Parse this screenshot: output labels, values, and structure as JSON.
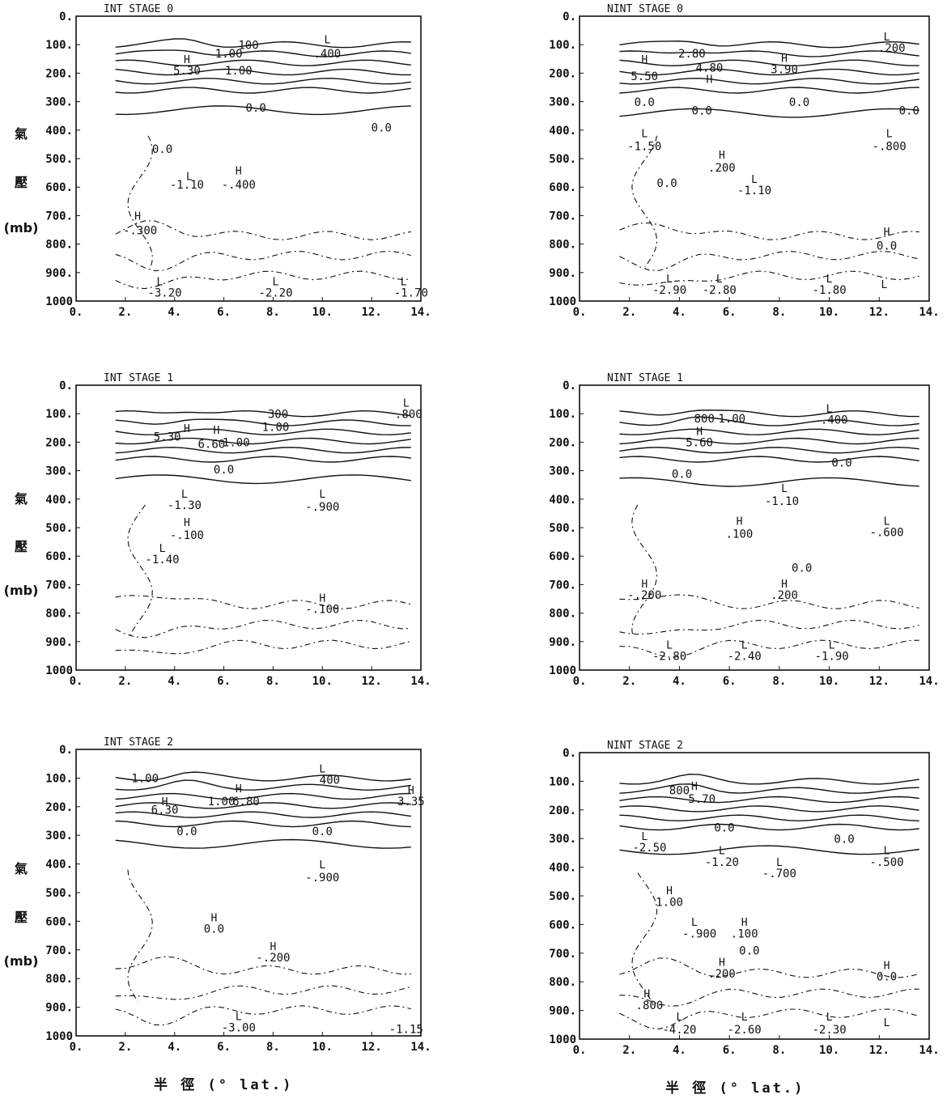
{
  "figure": {
    "x_axis_label": "半 徑 (° lat.)",
    "y_axis_label_chars": [
      "氣",
      "壓",
      "(mb)"
    ]
  },
  "chart_data": [
    {
      "type": "contour",
      "title": "INT STAGE 0",
      "x_ticks": [
        "0.",
        "2.",
        "4.",
        "6.",
        "8.",
        "10.",
        "12.",
        "14."
      ],
      "y_ticks": [
        "0.",
        "100.",
        "200.",
        "300.",
        "400.",
        "500.",
        "600.",
        "700.",
        "800.",
        "900.",
        "1000"
      ],
      "xlim": [
        0,
        14
      ],
      "ylim": [
        0,
        1000
      ],
      "y_inverted": true,
      "labels": [
        {
          "t": "H",
          "x": 4.5,
          "y": 165
        },
        {
          "t": "5.30",
          "x": 4.5,
          "y": 205
        },
        {
          "t": "L",
          "x": 10.2,
          "y": 95
        },
        {
          "t": ".400",
          "x": 10.2,
          "y": 145
        },
        {
          "t": "100",
          "x": 7.0,
          "y": 115
        },
        {
          "t": "1.00",
          "x": 6.2,
          "y": 145
        },
        {
          "t": "1.00",
          "x": 6.6,
          "y": 205
        },
        {
          "t": "0.0",
          "x": 7.3,
          "y": 335
        },
        {
          "t": "0.0",
          "x": 12.4,
          "y": 405
        },
        {
          "t": "0.0",
          "x": 3.5,
          "y": 480
        },
        {
          "t": "L",
          "x": 4.6,
          "y": 575
        },
        {
          "t": "-1.10",
          "x": 4.5,
          "y": 605
        },
        {
          "t": "H",
          "x": 6.6,
          "y": 555
        },
        {
          "t": "-.400",
          "x": 6.6,
          "y": 605
        },
        {
          "t": "H",
          "x": 2.5,
          "y": 715
        },
        {
          "t": "-.300",
          "x": 2.6,
          "y": 765
        },
        {
          "t": "L",
          "x": 3.4,
          "y": 945
        },
        {
          "t": "-3.20",
          "x": 3.6,
          "y": 985
        },
        {
          "t": "L",
          "x": 8.1,
          "y": 945
        },
        {
          "t": "-2.20",
          "x": 8.1,
          "y": 985
        },
        {
          "t": "L",
          "x": 13.3,
          "y": 945
        },
        {
          "t": "-1.70",
          "x": 13.6,
          "y": 985
        }
      ]
    },
    {
      "type": "contour",
      "title": "NINT STAGE 0",
      "x_ticks": [
        "0.",
        "2.",
        "4.",
        "6.",
        "8.",
        "10.",
        "12.",
        "14."
      ],
      "y_ticks": [
        "0.",
        "100.",
        "200.",
        "300.",
        "400.",
        "500.",
        "600.",
        "700.",
        "800.",
        "900.",
        "1000"
      ],
      "xlim": [
        0,
        14
      ],
      "ylim": [
        0,
        1000
      ],
      "y_inverted": true,
      "labels": [
        {
          "t": "2.80",
          "x": 4.5,
          "y": 145
        },
        {
          "t": "H",
          "x": 2.6,
          "y": 165
        },
        {
          "t": "5.50",
          "x": 2.6,
          "y": 225
        },
        {
          "t": "H",
          "x": 5.2,
          "y": 235
        },
        {
          "t": "4.80",
          "x": 5.2,
          "y": 195
        },
        {
          "t": "H",
          "x": 8.2,
          "y": 160
        },
        {
          "t": "3.90",
          "x": 8.2,
          "y": 200
        },
        {
          "t": "L",
          "x": 12.3,
          "y": 85
        },
        {
          "t": ".200",
          "x": 12.5,
          "y": 125
        },
        {
          "t": "0.0",
          "x": 2.6,
          "y": 315
        },
        {
          "t": "0.0",
          "x": 4.9,
          "y": 345
        },
        {
          "t": "0.0",
          "x": 8.8,
          "y": 315
        },
        {
          "t": "0.0",
          "x": 13.2,
          "y": 345
        },
        {
          "t": "L",
          "x": 2.6,
          "y": 425
        },
        {
          "t": "-1.50",
          "x": 2.6,
          "y": 470
        },
        {
          "t": "L",
          "x": 12.4,
          "y": 425
        },
        {
          "t": "-.800",
          "x": 12.4,
          "y": 470
        },
        {
          "t": "H",
          "x": 5.7,
          "y": 500
        },
        {
          "t": ".200",
          "x": 5.7,
          "y": 545
        },
        {
          "t": "L",
          "x": 7.0,
          "y": 585
        },
        {
          "t": "-1.10",
          "x": 7.0,
          "y": 625
        },
        {
          "t": "0.0",
          "x": 3.5,
          "y": 600
        },
        {
          "t": "H",
          "x": 12.3,
          "y": 770
        },
        {
          "t": "0.0",
          "x": 12.3,
          "y": 820
        },
        {
          "t": "L",
          "x": 3.6,
          "y": 935
        },
        {
          "t": "-2.90",
          "x": 3.6,
          "y": 975
        },
        {
          "t": "L",
          "x": 5.6,
          "y": 935
        },
        {
          "t": "-2.80",
          "x": 5.6,
          "y": 975
        },
        {
          "t": "L",
          "x": 10.0,
          "y": 935
        },
        {
          "t": "-1.80",
          "x": 10.0,
          "y": 975
        },
        {
          "t": "L",
          "x": 12.2,
          "y": 955
        }
      ]
    },
    {
      "type": "contour",
      "title": "INT STAGE 1",
      "x_ticks": [
        "0.",
        "2.",
        "4.",
        "6.",
        "8.",
        "10.",
        "12.",
        "14."
      ],
      "y_ticks": [
        "0.",
        "100.",
        "200.",
        "300.",
        "400.",
        "500.",
        "600.",
        "700.",
        "800.",
        "900.",
        "1000"
      ],
      "xlim": [
        0,
        14
      ],
      "ylim": [
        0,
        1000
      ],
      "y_inverted": true,
      "labels": [
        {
          "t": "L",
          "x": 13.4,
          "y": 75
        },
        {
          "t": ".800",
          "x": 13.5,
          "y": 115
        },
        {
          "t": "300",
          "x": 8.2,
          "y": 115
        },
        {
          "t": "1.00",
          "x": 8.1,
          "y": 160
        },
        {
          "t": "H",
          "x": 4.5,
          "y": 165
        },
        {
          "t": "H",
          "x": 5.7,
          "y": 170
        },
        {
          "t": "5.30",
          "x": 3.7,
          "y": 195
        },
        {
          "t": "6.60",
          "x": 5.5,
          "y": 220
        },
        {
          "t": "1.00",
          "x": 6.5,
          "y": 215
        },
        {
          "t": "0.0",
          "x": 6.0,
          "y": 310
        },
        {
          "t": "L",
          "x": 4.4,
          "y": 395
        },
        {
          "t": "-1.30",
          "x": 4.4,
          "y": 435
        },
        {
          "t": "L",
          "x": 10.0,
          "y": 395
        },
        {
          "t": "-.900",
          "x": 10.0,
          "y": 440
        },
        {
          "t": "H",
          "x": 4.5,
          "y": 495
        },
        {
          "t": "-.100",
          "x": 4.5,
          "y": 540
        },
        {
          "t": "L",
          "x": 3.5,
          "y": 585
        },
        {
          "t": "-1.40",
          "x": 3.5,
          "y": 625
        },
        {
          "t": "H",
          "x": 10.0,
          "y": 760
        },
        {
          "t": "-.100",
          "x": 10.0,
          "y": 800
        }
      ]
    },
    {
      "type": "contour",
      "title": "NINT STAGE 1",
      "x_ticks": [
        "0.",
        "2.",
        "4.",
        "6.",
        "8.",
        "10.",
        "12.",
        "14."
      ],
      "y_ticks": [
        "0.",
        "100.",
        "200.",
        "300.",
        "400.",
        "500.",
        "600.",
        "700.",
        "800.",
        "900.",
        "1000"
      ],
      "xlim": [
        0,
        14
      ],
      "ylim": [
        0,
        1000
      ],
      "y_inverted": true,
      "labels": [
        {
          "t": "800",
          "x": 5.0,
          "y": 130
        },
        {
          "t": "1.00",
          "x": 6.1,
          "y": 130
        },
        {
          "t": "H",
          "x": 4.8,
          "y": 175
        },
        {
          "t": "5.60",
          "x": 4.8,
          "y": 215
        },
        {
          "t": "L",
          "x": 10.0,
          "y": 95
        },
        {
          "t": ".400",
          "x": 10.2,
          "y": 135
        },
        {
          "t": "0.0",
          "x": 10.5,
          "y": 285
        },
        {
          "t": "0.0",
          "x": 4.1,
          "y": 325
        },
        {
          "t": "L",
          "x": 8.2,
          "y": 375
        },
        {
          "t": "-1.10",
          "x": 8.1,
          "y": 420
        },
        {
          "t": "H",
          "x": 6.4,
          "y": 490
        },
        {
          "t": ".100",
          "x": 6.4,
          "y": 535
        },
        {
          "t": "L",
          "x": 12.3,
          "y": 490
        },
        {
          "t": "-.600",
          "x": 12.3,
          "y": 530
        },
        {
          "t": "0.0",
          "x": 8.9,
          "y": 655
        },
        {
          "t": "H",
          "x": 8.2,
          "y": 710
        },
        {
          "t": ".200",
          "x": 8.2,
          "y": 750
        },
        {
          "t": "H",
          "x": 2.6,
          "y": 710
        },
        {
          "t": "-.200",
          "x": 2.6,
          "y": 750
        },
        {
          "t": "L",
          "x": 3.6,
          "y": 925
        },
        {
          "t": "-2.80",
          "x": 3.6,
          "y": 965
        },
        {
          "t": "L",
          "x": 6.6,
          "y": 925
        },
        {
          "t": "-2.40",
          "x": 6.6,
          "y": 965
        },
        {
          "t": "L",
          "x": 10.1,
          "y": 925
        },
        {
          "t": "-1.90",
          "x": 10.1,
          "y": 965
        }
      ]
    },
    {
      "type": "contour",
      "title": "INT STAGE 2",
      "x_ticks": [
        "0.",
        "2.",
        "4.",
        "6.",
        "8.",
        "10.",
        "12.",
        "14."
      ],
      "y_ticks": [
        "0.",
        "100.",
        "200.",
        "300.",
        "400.",
        "500.",
        "600.",
        "700.",
        "800.",
        "900.",
        "1000"
      ],
      "xlim": [
        0,
        14
      ],
      "ylim": [
        0,
        1000
      ],
      "y_inverted": true,
      "labels": [
        {
          "t": "1.00",
          "x": 2.8,
          "y": 115
        },
        {
          "t": "L",
          "x": 10.0,
          "y": 80
        },
        {
          "t": "400",
          "x": 10.3,
          "y": 120
        },
        {
          "t": "H",
          "x": 13.6,
          "y": 155
        },
        {
          "t": "3.35",
          "x": 13.6,
          "y": 195
        },
        {
          "t": "H",
          "x": 6.6,
          "y": 150
        },
        {
          "t": "6.80",
          "x": 6.9,
          "y": 195
        },
        {
          "t": "1.00",
          "x": 5.9,
          "y": 195
        },
        {
          "t": "H",
          "x": 3.6,
          "y": 195
        },
        {
          "t": "6.30",
          "x": 3.6,
          "y": 225
        },
        {
          "t": "0.0",
          "x": 4.5,
          "y": 300
        },
        {
          "t": "0.0",
          "x": 10.0,
          "y": 300
        },
        {
          "t": "L",
          "x": 10.0,
          "y": 415
        },
        {
          "t": "-.900",
          "x": 10.0,
          "y": 460
        },
        {
          "t": "H",
          "x": 5.6,
          "y": 600
        },
        {
          "t": "0.0",
          "x": 5.6,
          "y": 640
        },
        {
          "t": "H",
          "x": 8.0,
          "y": 700
        },
        {
          "t": "-.200",
          "x": 8.0,
          "y": 740
        },
        {
          "t": "L",
          "x": 6.6,
          "y": 945
        },
        {
          "t": "-3.00",
          "x": 6.6,
          "y": 985
        },
        {
          "t": "-1.15",
          "x": 13.4,
          "y": 990
        }
      ]
    },
    {
      "type": "contour",
      "title": "NINT STAGE 2",
      "x_ticks": [
        "0.",
        "2.",
        "4.",
        "6.",
        "8.",
        "10.",
        "12.",
        "14."
      ],
      "y_ticks": [
        "0.",
        "100.",
        "200.",
        "300.",
        "400.",
        "500.",
        "600.",
        "700.",
        "800.",
        "900.",
        "1000"
      ],
      "xlim": [
        0,
        14
      ],
      "ylim": [
        0,
        1000
      ],
      "y_inverted": true,
      "labels": [
        {
          "t": "800",
          "x": 4.0,
          "y": 145
        },
        {
          "t": "H",
          "x": 4.6,
          "y": 130
        },
        {
          "t": "5.70",
          "x": 4.9,
          "y": 175
        },
        {
          "t": "0.0",
          "x": 5.8,
          "y": 275
        },
        {
          "t": "0.0",
          "x": 10.6,
          "y": 315
        },
        {
          "t": "L",
          "x": 2.6,
          "y": 305
        },
        {
          "t": "-2.50",
          "x": 2.8,
          "y": 345
        },
        {
          "t": "L",
          "x": 5.7,
          "y": 355
        },
        {
          "t": "-1.20",
          "x": 5.7,
          "y": 395
        },
        {
          "t": "L",
          "x": 8.0,
          "y": 395
        },
        {
          "t": "-.700",
          "x": 8.0,
          "y": 435
        },
        {
          "t": "L",
          "x": 12.3,
          "y": 355
        },
        {
          "t": "-.500",
          "x": 12.3,
          "y": 395
        },
        {
          "t": "H",
          "x": 3.6,
          "y": 495
        },
        {
          "t": "1.00",
          "x": 3.6,
          "y": 535
        },
        {
          "t": "L",
          "x": 4.6,
          "y": 605
        },
        {
          "t": "-.900",
          "x": 4.8,
          "y": 645
        },
        {
          "t": "H",
          "x": 6.6,
          "y": 605
        },
        {
          "t": ".100",
          "x": 6.6,
          "y": 645
        },
        {
          "t": "0.0",
          "x": 6.8,
          "y": 705
        },
        {
          "t": "H",
          "x": 5.7,
          "y": 745
        },
        {
          "t": ".200",
          "x": 5.7,
          "y": 785
        },
        {
          "t": "H",
          "x": 12.3,
          "y": 755
        },
        {
          "t": "0.0",
          "x": 12.3,
          "y": 795
        },
        {
          "t": "H",
          "x": 2.7,
          "y": 855
        },
        {
          "t": ".800",
          "x": 2.8,
          "y": 895
        },
        {
          "t": "L",
          "x": 4.0,
          "y": 935
        },
        {
          "t": "-4.20",
          "x": 4.0,
          "y": 980
        },
        {
          "t": "L",
          "x": 6.6,
          "y": 935
        },
        {
          "t": "-2.60",
          "x": 6.6,
          "y": 980
        },
        {
          "t": "L",
          "x": 10.0,
          "y": 935
        },
        {
          "t": "-2.30",
          "x": 10.0,
          "y": 980
        },
        {
          "t": "L",
          "x": 12.3,
          "y": 955
        }
      ]
    }
  ]
}
